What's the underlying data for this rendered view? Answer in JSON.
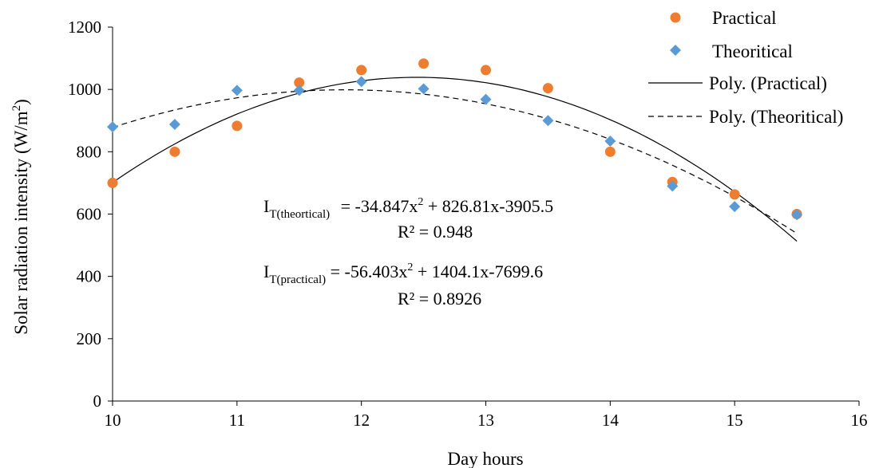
{
  "chart_data": {
    "type": "scatter",
    "xlabel": "Day hours",
    "ylabel": "Solar radiation intensity (W/m2)",
    "ylabel_parts": {
      "main": "Solar radiation intensity (W/m",
      "sup": "2",
      "end": ")"
    },
    "xlim": [
      10,
      16
    ],
    "ylim": [
      0,
      1200
    ],
    "xticks": [
      10,
      11,
      12,
      13,
      14,
      15,
      16
    ],
    "yticks": [
      0,
      200,
      400,
      600,
      800,
      1000,
      1200
    ],
    "grid": false,
    "legend_position": "top-right",
    "series": [
      {
        "name": "Practical",
        "marker": "circle",
        "color": "#ED7D31",
        "x": [
          10,
          10.5,
          11,
          11.5,
          12,
          12.5,
          13,
          13.5,
          14,
          14.5,
          15,
          15.5
        ],
        "y": [
          700,
          800,
          883,
          1022,
          1062,
          1083,
          1062,
          1004,
          800,
          703,
          663,
          600
        ]
      },
      {
        "name": "Theoritical",
        "marker": "diamond",
        "color": "#5B9BD5",
        "x": [
          10,
          10.5,
          11,
          11.5,
          12,
          12.5,
          13,
          13.5,
          14,
          14.5,
          15,
          15.5
        ],
        "y": [
          880,
          888,
          997,
          997,
          1025,
          1002,
          968,
          900,
          834,
          690,
          624,
          598
        ]
      }
    ],
    "trendlines": [
      {
        "name": "Poly. (Practical)",
        "style": "solid",
        "coefficients": [
          -56.403,
          1404.1,
          -7699.6
        ],
        "x_range": [
          10,
          15.5
        ]
      },
      {
        "name": "Poly. (Theoritical)",
        "style": "dashed",
        "coefficients": [
          -34.847,
          826.81,
          -3905.5
        ],
        "x_range": [
          10,
          15.5
        ]
      }
    ],
    "annotations": [
      {
        "label": "I",
        "subscript": "T(theortical)",
        "equation_head": " = -34.847x",
        "sup": "2",
        "equation_tail": " + 826.81x-3905.5",
        "r2": "R² = 0.948"
      },
      {
        "label": "I",
        "subscript": "T(practical)",
        "equation_head": " = -56.403x",
        "sup": "2",
        "equation_tail": " + 1404.1x-7699.6",
        "r2": "R² = 0.8926"
      }
    ]
  }
}
